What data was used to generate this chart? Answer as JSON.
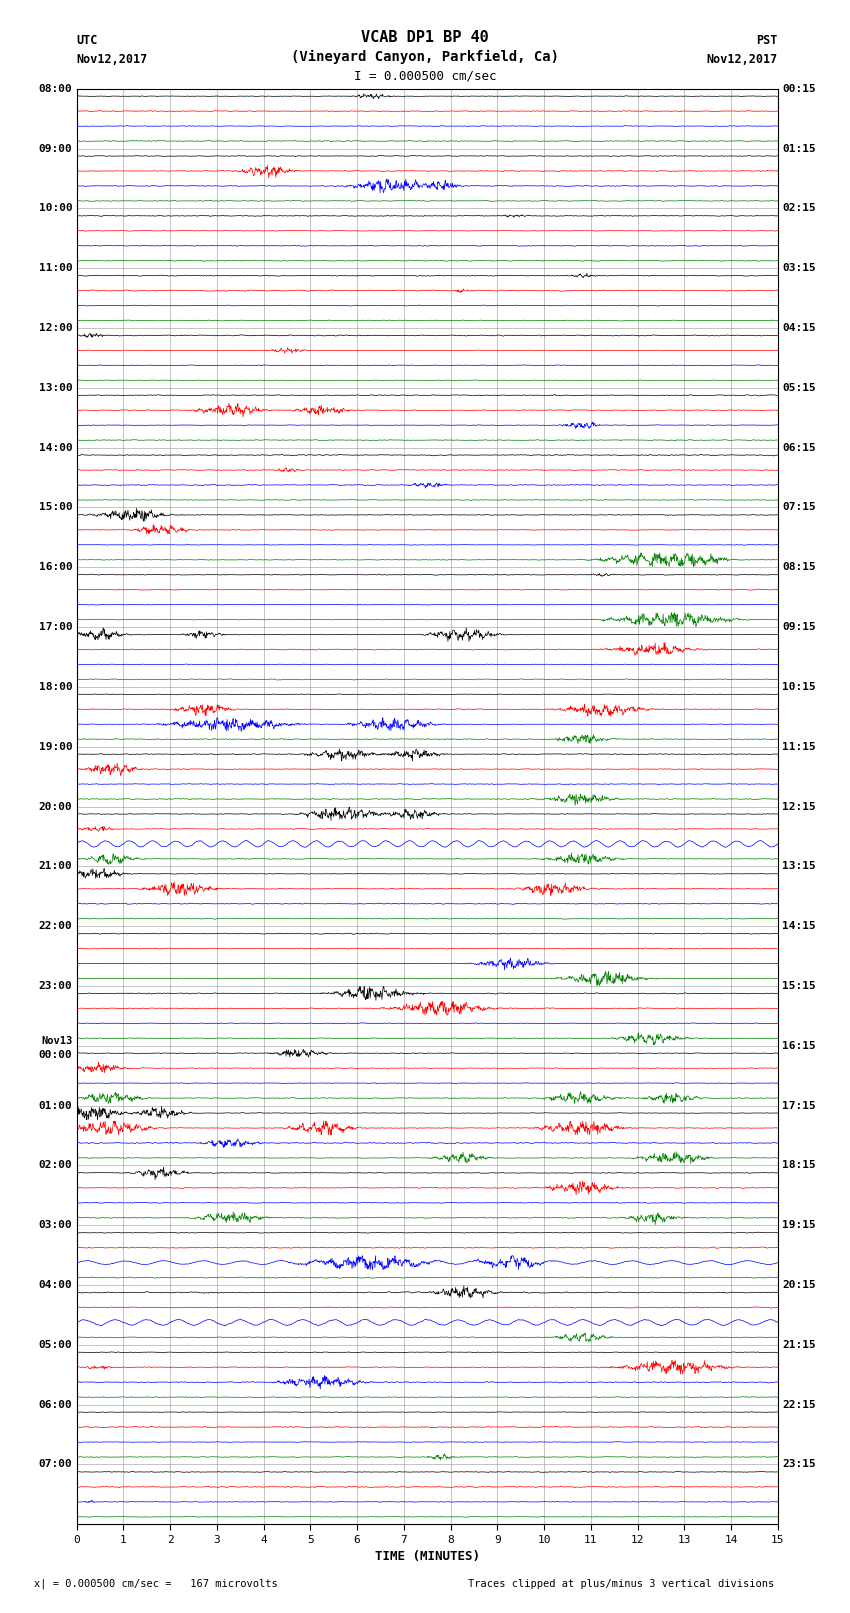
{
  "title_line1": "VCAB DP1 BP 40",
  "title_line2": "(Vineyard Canyon, Parkfield, Ca)",
  "scale_text": "I = 0.000500 cm/sec",
  "utc_label": "UTC",
  "utc_date": "Nov12,2017",
  "pst_label": "PST",
  "pst_date": "Nov12,2017",
  "xlabel": "TIME (MINUTES)",
  "footer_left": "x| = 0.000500 cm/sec =   167 microvolts",
  "footer_right": "Traces clipped at plus/minus 3 vertical divisions",
  "left_labels": [
    "08:00",
    "09:00",
    "10:00",
    "11:00",
    "12:00",
    "13:00",
    "14:00",
    "15:00",
    "16:00",
    "17:00",
    "18:00",
    "19:00",
    "20:00",
    "21:00",
    "22:00",
    "23:00",
    "Nov13\n00:00",
    "01:00",
    "02:00",
    "03:00",
    "04:00",
    "05:00",
    "06:00",
    "07:00"
  ],
  "right_labels": [
    "00:15",
    "01:15",
    "02:15",
    "03:15",
    "04:15",
    "05:15",
    "06:15",
    "07:15",
    "08:15",
    "09:15",
    "10:15",
    "11:15",
    "12:15",
    "13:15",
    "14:15",
    "15:15",
    "16:15",
    "17:15",
    "18:15",
    "19:15",
    "20:15",
    "21:15",
    "22:15",
    "23:15"
  ],
  "num_rows": 24,
  "traces_per_row": 4,
  "colors": [
    "black",
    "red",
    "blue",
    "green"
  ],
  "time_minutes": 15,
  "bg_color": "white",
  "grid_color": "#888888",
  "figsize": [
    8.5,
    16.13
  ],
  "dpi": 100
}
